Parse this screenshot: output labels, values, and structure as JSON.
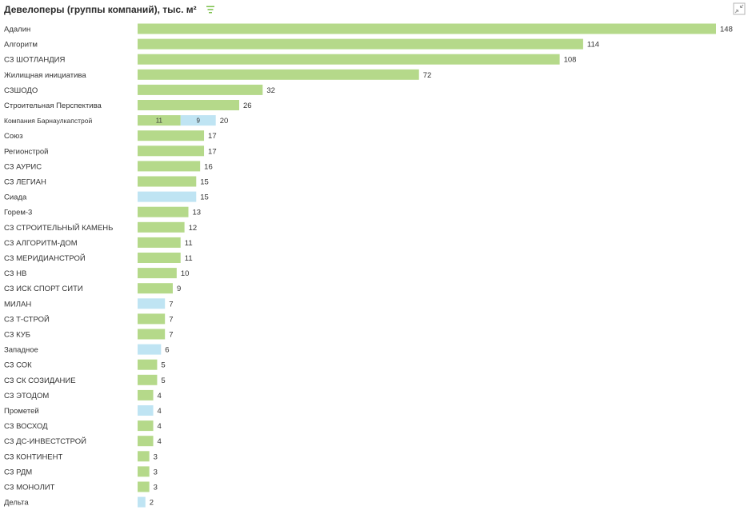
{
  "header": {
    "title": "Девелоперы (группы компаний), тыс. м²",
    "sort_icon": "sort-lines-icon",
    "expand_icon": "collapse-arrows-icon"
  },
  "colors": {
    "green": "#b5d98a",
    "blue": "#bfe4f3",
    "accent": "#7cc04b"
  },
  "chart_data": {
    "type": "bar",
    "orientation": "horizontal",
    "stacked": true,
    "title": "Девелоперы (группы компаний), тыс. м²",
    "xlim": [
      0,
      148
    ],
    "grid": false,
    "rows": [
      {
        "label": "Адалин",
        "total": 148,
        "segments": [
          {
            "value": 148,
            "color": "green"
          }
        ]
      },
      {
        "label": "Алгоритм",
        "total": 114,
        "segments": [
          {
            "value": 114,
            "color": "green"
          }
        ]
      },
      {
        "label": "СЗ ШОТЛАНДИЯ",
        "total": 108,
        "segments": [
          {
            "value": 108,
            "color": "green"
          }
        ]
      },
      {
        "label": "Жилищная инициатива",
        "total": 72,
        "segments": [
          {
            "value": 72,
            "color": "green"
          }
        ]
      },
      {
        "label": "СЗШОДО",
        "total": 32,
        "segments": [
          {
            "value": 32,
            "color": "green"
          }
        ]
      },
      {
        "label": "Строительная Перспектива",
        "total": 26,
        "segments": [
          {
            "value": 26,
            "color": "green"
          }
        ]
      },
      {
        "label": "Компания Барнаулкапстрой",
        "total": 20,
        "small": true,
        "segments": [
          {
            "value": 11,
            "color": "green",
            "show": true
          },
          {
            "value": 9,
            "color": "blue",
            "show": true
          }
        ]
      },
      {
        "label": "Союз",
        "total": 17,
        "segments": [
          {
            "value": 17,
            "color": "green"
          }
        ]
      },
      {
        "label": "Регионстрой",
        "total": 17,
        "segments": [
          {
            "value": 17,
            "color": "green"
          }
        ]
      },
      {
        "label": "СЗ АУРИС",
        "total": 16,
        "segments": [
          {
            "value": 16,
            "color": "green"
          }
        ]
      },
      {
        "label": "СЗ ЛЕГИАН",
        "total": 15,
        "segments": [
          {
            "value": 15,
            "color": "green"
          }
        ]
      },
      {
        "label": "Сиада",
        "total": 15,
        "segments": [
          {
            "value": 15,
            "color": "blue"
          }
        ]
      },
      {
        "label": "Горем-3",
        "total": 13,
        "segments": [
          {
            "value": 13,
            "color": "green"
          }
        ]
      },
      {
        "label": "СЗ СТРОИТЕЛЬНЫЙ КАМЕНЬ",
        "total": 12,
        "segments": [
          {
            "value": 12,
            "color": "green"
          }
        ]
      },
      {
        "label": "СЗ АЛГОРИТМ-ДОМ",
        "total": 11,
        "segments": [
          {
            "value": 11,
            "color": "green"
          }
        ]
      },
      {
        "label": "СЗ МЕРИДИАНСТРОЙ",
        "total": 11,
        "segments": [
          {
            "value": 11,
            "color": "green"
          }
        ]
      },
      {
        "label": "СЗ НВ",
        "total": 10,
        "segments": [
          {
            "value": 10,
            "color": "green"
          }
        ]
      },
      {
        "label": "СЗ ИСК СПОРТ СИТИ",
        "total": 9,
        "segments": [
          {
            "value": 9,
            "color": "green"
          }
        ]
      },
      {
        "label": "МИЛАН",
        "total": 7,
        "segments": [
          {
            "value": 7,
            "color": "blue"
          }
        ]
      },
      {
        "label": "СЗ Т-СТРОЙ",
        "total": 7,
        "segments": [
          {
            "value": 7,
            "color": "green"
          }
        ]
      },
      {
        "label": "СЗ КУБ",
        "total": 7,
        "segments": [
          {
            "value": 7,
            "color": "green"
          }
        ]
      },
      {
        "label": "Западное",
        "total": 6,
        "segments": [
          {
            "value": 6,
            "color": "blue"
          }
        ]
      },
      {
        "label": "СЗ СОК",
        "total": 5,
        "segments": [
          {
            "value": 5,
            "color": "green"
          }
        ]
      },
      {
        "label": "СЗ СК СОЗИДАНИЕ",
        "total": 5,
        "segments": [
          {
            "value": 5,
            "color": "green"
          }
        ]
      },
      {
        "label": "СЗ ЭТОДОМ",
        "total": 4,
        "segments": [
          {
            "value": 4,
            "color": "green"
          }
        ]
      },
      {
        "label": "Прометей",
        "total": 4,
        "segments": [
          {
            "value": 4,
            "color": "blue"
          }
        ]
      },
      {
        "label": "СЗ ВОСХОД",
        "total": 4,
        "segments": [
          {
            "value": 4,
            "color": "green"
          }
        ]
      },
      {
        "label": "СЗ ДС-ИНВЕСТСТРОЙ",
        "total": 4,
        "segments": [
          {
            "value": 4,
            "color": "green"
          }
        ]
      },
      {
        "label": "СЗ КОНТИНЕНТ",
        "total": 3,
        "segments": [
          {
            "value": 3,
            "color": "green"
          }
        ]
      },
      {
        "label": "СЗ РДМ",
        "total": 3,
        "segments": [
          {
            "value": 3,
            "color": "green"
          }
        ]
      },
      {
        "label": "СЗ МОНОЛИТ",
        "total": 3,
        "segments": [
          {
            "value": 3,
            "color": "green"
          }
        ]
      },
      {
        "label": "Дельта",
        "total": 2,
        "segments": [
          {
            "value": 2,
            "color": "blue"
          }
        ]
      }
    ]
  }
}
